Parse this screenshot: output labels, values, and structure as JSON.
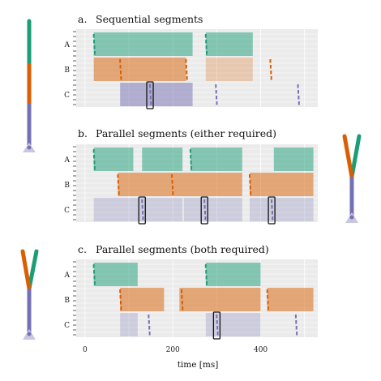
{
  "colors": {
    "A": "#1b9e77",
    "B": "#d95f02",
    "C": "#7570b3",
    "panel_bg": "#ebebeb",
    "grid": "#ffffff"
  },
  "chart_data": [
    {
      "type": "bar",
      "panel": "a.",
      "title": "Sequential segments",
      "rows": [
        "A",
        "B",
        "C"
      ],
      "xlim": [
        -20,
        530
      ],
      "intervals": {
        "A": [
          [
            20,
            245,
            1
          ],
          [
            275,
            382,
            1
          ]
        ],
        "B": [
          [
            20,
            230,
            1
          ],
          [
            275,
            382,
            0.5
          ]
        ],
        "C": [
          [
            80,
            245,
            1
          ]
        ]
      },
      "markers": {
        "A": [
          20,
          275
        ],
        "B": [
          80,
          230,
          422
        ],
        "C": [
          148,
          298,
          485
        ]
      },
      "highlight": {
        "row": "C",
        "x": 148
      },
      "icon": "sequential-stick"
    },
    {
      "type": "bar",
      "panel": "b.",
      "title": "Parallel segments (either required)",
      "rows": [
        "A",
        "B",
        "C"
      ],
      "xlim": [
        -20,
        530
      ],
      "intervals": {
        "A": [
          [
            20,
            110,
            1
          ],
          [
            130,
            222,
            1
          ],
          [
            240,
            358,
            1
          ],
          [
            430,
            520,
            1
          ]
        ],
        "B": [
          [
            75,
            358,
            1
          ],
          [
            375,
            520,
            1
          ]
        ],
        "C": [
          [
            20,
            222,
            0.5
          ],
          [
            225,
            358,
            0.5
          ],
          [
            375,
            520,
            0.5
          ]
        ]
      },
      "markers": {
        "A": [
          20,
          240
        ],
        "B": [
          75,
          198,
          375
        ],
        "C": [
          130,
          272,
          425
        ]
      },
      "highlight": [
        {
          "row": "C",
          "x": 130
        },
        {
          "row": "C",
          "x": 272
        },
        {
          "row": "C",
          "x": 425
        }
      ],
      "icon": "fork-either"
    },
    {
      "type": "bar",
      "panel": "c.",
      "title": "Parallel segments (both required)",
      "rows": [
        "A",
        "B",
        "C"
      ],
      "xlim": [
        -20,
        530
      ],
      "xticks": [
        0,
        200,
        400
      ],
      "xlabel": "time [ms]",
      "intervals": {
        "A": [
          [
            20,
            120,
            1
          ],
          [
            275,
            400,
            1
          ]
        ],
        "B": [
          [
            80,
            180,
            1
          ],
          [
            215,
            400,
            1
          ],
          [
            415,
            520,
            1
          ]
        ],
        "C": [
          [
            80,
            120,
            0.5
          ],
          [
            275,
            400,
            0.5
          ]
        ]
      },
      "markers": {
        "A": [
          20,
          275
        ],
        "B": [
          80,
          220,
          415
        ],
        "C": [
          145,
          300,
          480
        ]
      },
      "highlight": {
        "row": "C",
        "x": 300
      },
      "icon": "fork-both"
    }
  ]
}
